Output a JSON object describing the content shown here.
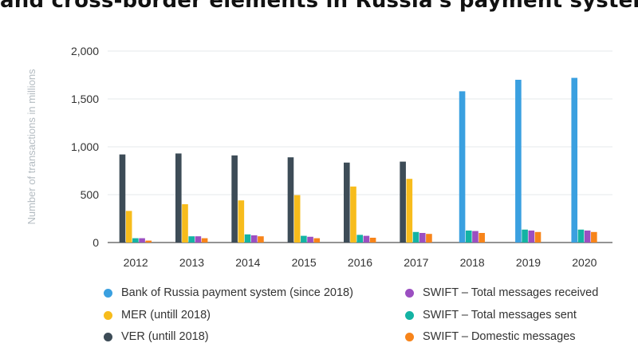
{
  "chart_data": {
    "type": "bar",
    "title": "and cross-border elements in Russia's payment system",
    "xlabel": "",
    "ylabel": "Number of transactions in millions",
    "ylim": [
      0,
      2000
    ],
    "yticks": [
      "0",
      "500",
      "1,000",
      "1,500",
      "2,000"
    ],
    "ytick_values": [
      0,
      500,
      1000,
      1500,
      2000
    ],
    "grid": true,
    "categories": [
      "2012",
      "2013",
      "2014",
      "2015",
      "2016",
      "2017",
      "2018",
      "2019",
      "2020"
    ],
    "series": [
      {
        "name": "Bank of Russia payment system (since 2018)",
        "color": "#3aa0e0",
        "values": [
          null,
          null,
          null,
          null,
          null,
          null,
          1580,
          1700,
          1720
        ]
      },
      {
        "name": "VER (untill 2018)",
        "color": "#3d4c57",
        "values": [
          920,
          930,
          910,
          890,
          835,
          845,
          null,
          null,
          null
        ]
      },
      {
        "name": "MER (untill 2018)",
        "color": "#f7bc1c",
        "values": [
          330,
          400,
          440,
          495,
          585,
          665,
          null,
          null,
          null
        ]
      },
      {
        "name": "SWIFT – Total messages sent",
        "color": "#14b3a3",
        "values": [
          45,
          65,
          85,
          70,
          80,
          110,
          125,
          135,
          135
        ]
      },
      {
        "name": "SWIFT – Total messages received",
        "color": "#9b4fc1",
        "values": [
          45,
          65,
          75,
          60,
          70,
          100,
          120,
          125,
          125
        ]
      },
      {
        "name": "SWIFT – Domestic messages",
        "color": "#f7841a",
        "values": [
          20,
          45,
          65,
          45,
          50,
          90,
          100,
          110,
          110
        ]
      }
    ],
    "legend": [
      {
        "label": "Bank of Russia payment system (since 2018)",
        "color": "#3aa0e0"
      },
      {
        "label": "MER (untill 2018)",
        "color": "#f7bc1c"
      },
      {
        "label": "VER (untill 2018)",
        "color": "#3d4c57"
      },
      {
        "label": "SWIFT – Total messages received",
        "color": "#9b4fc1"
      },
      {
        "label": "SWIFT – Total messages sent",
        "color": "#14b3a3"
      },
      {
        "label": "SWIFT – Domestic messages",
        "color": "#f7841a"
      }
    ],
    "legend_position": "bottom"
  }
}
